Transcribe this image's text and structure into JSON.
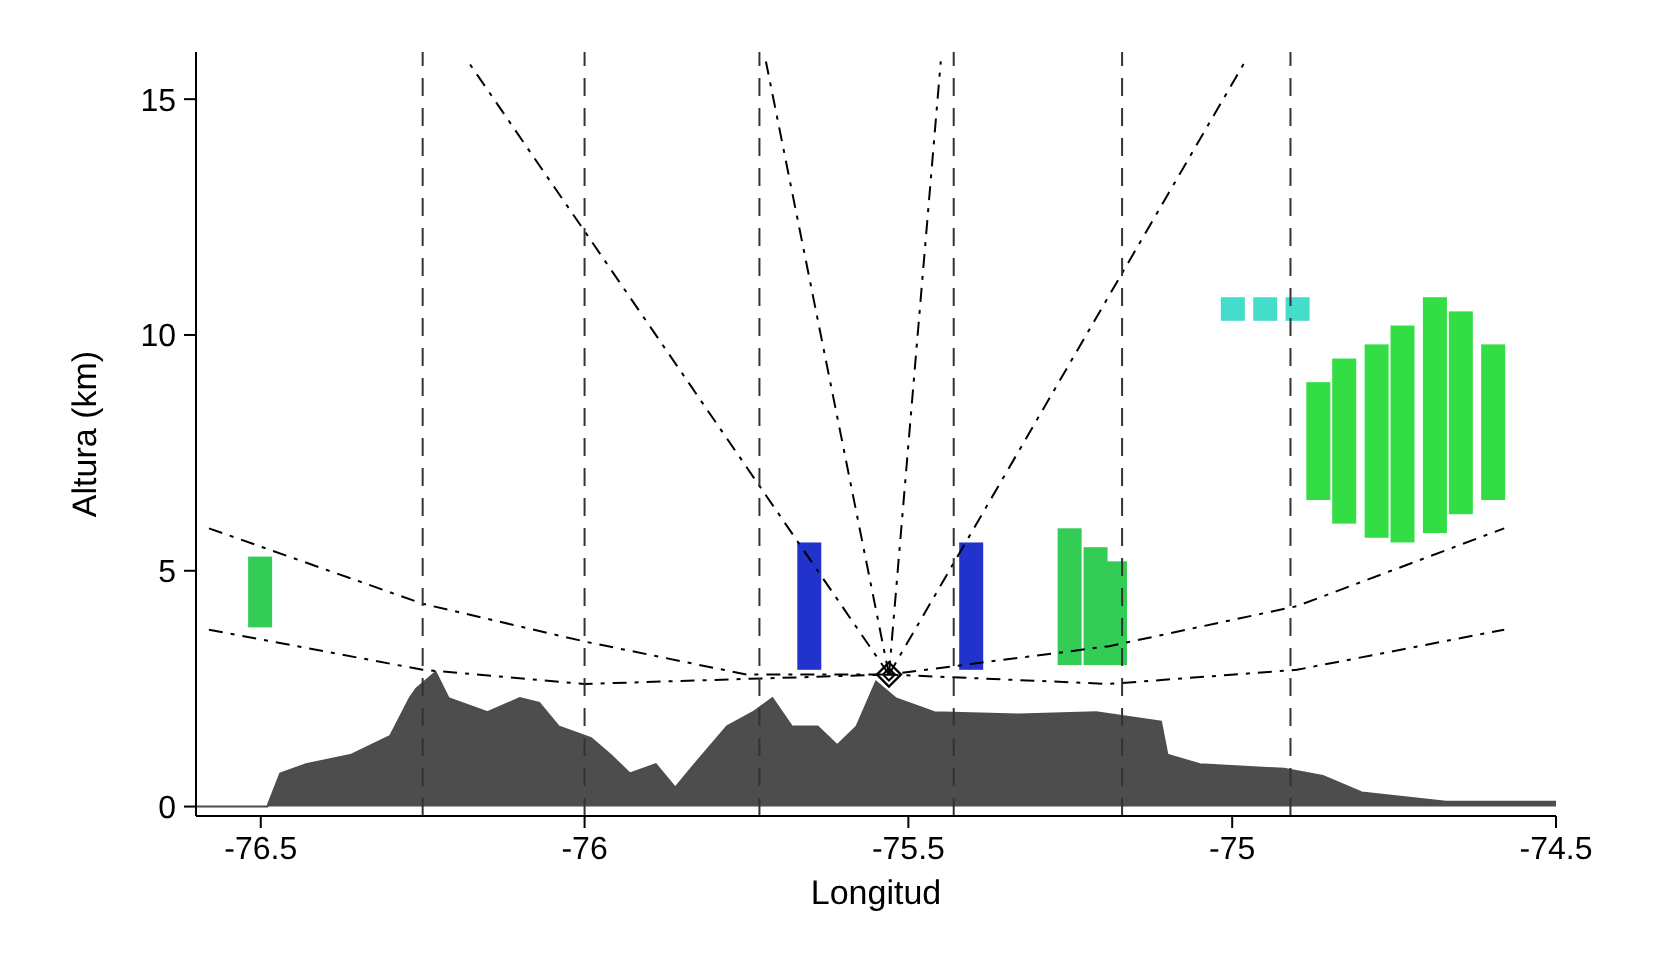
{
  "chart_data": {
    "type": "line",
    "xlabel": "Longitud",
    "ylabel": "Altura (km)",
    "xlim": [
      -76.6,
      -74.5
    ],
    "xticks": [
      -76.5,
      -76.0,
      -75.5,
      -75.0,
      -74.5
    ],
    "ylim": [
      -0.2,
      16
    ],
    "yticks": [
      0,
      5,
      10,
      15
    ],
    "ref_lines": [
      {
        "axis": "x",
        "value": -76.25,
        "line_style": "dashed",
        "color": "#333333"
      },
      {
        "axis": "x",
        "value": -76.0,
        "line_style": "dashed",
        "color": "#333333"
      },
      {
        "axis": "x",
        "value": -75.73,
        "line_style": "dashed",
        "color": "#333333"
      },
      {
        "axis": "x",
        "value": -75.43,
        "line_style": "dashed",
        "color": "#333333"
      },
      {
        "axis": "x",
        "value": -75.17,
        "line_style": "dashed",
        "color": "#333333"
      },
      {
        "axis": "x",
        "value": -74.91,
        "line_style": "dashed",
        "color": "#333333"
      }
    ],
    "series": [
      {
        "type": "area",
        "color": "#4d4d4d",
        "x": [
          -76.6,
          -76.49,
          -76.47,
          -76.43,
          -76.36,
          -76.3,
          -76.27,
          -76.26,
          -76.23,
          -76.21,
          -76.15,
          -76.1,
          -76.07,
          -76.04,
          -75.99,
          -75.96,
          -75.93,
          -75.89,
          -75.86,
          -75.83,
          -75.78,
          -75.74,
          -75.71,
          -75.68,
          -75.64,
          -75.61,
          -75.58,
          -75.55,
          -75.52,
          -75.46,
          -75.33,
          -75.21,
          -75.11,
          -75.1,
          -75.05,
          -74.92,
          -74.86,
          -74.8,
          -74.67,
          -74.5
        ],
        "values": [
          0,
          0,
          0.7,
          0.9,
          1.1,
          1.5,
          2.3,
          2.5,
          2.85,
          2.3,
          2.0,
          2.3,
          2.2,
          1.7,
          1.45,
          1.1,
          0.7,
          0.9,
          0.4,
          0.9,
          1.7,
          2.0,
          2.3,
          1.7,
          1.7,
          1.3,
          1.7,
          2.65,
          2.3,
          2.0,
          1.95,
          2.0,
          1.8,
          1.1,
          0.9,
          0.8,
          0.65,
          0.3,
          0.1,
          0.1
        ]
      },
      {
        "type": "bar",
        "color": "#2233cc",
        "x": [
          -75.65,
          -75.4
        ],
        "base": [
          2.9,
          2.9
        ],
        "values": [
          2.7,
          2.7
        ]
      },
      {
        "type": "bar",
        "color": "#33cc55",
        "x": [
          -76.5,
          -75.25,
          -75.21,
          -75.18
        ],
        "base": [
          3.8,
          3.0,
          3.0,
          3.0
        ],
        "values": [
          1.5,
          2.9,
          2.5,
          2.2
        ]
      },
      {
        "type": "bar",
        "color": "#44ddcc",
        "x": [
          -75.0,
          -74.95,
          -74.9
        ],
        "base": [
          10.3,
          10.3,
          10.3
        ],
        "values": [
          0.5,
          0.5,
          0.5
        ]
      },
      {
        "type": "bar",
        "color": "#33dd44",
        "x": [
          -74.87,
          -74.83,
          -74.78,
          -74.74,
          -74.69,
          -74.65,
          -74.6
        ],
        "base": [
          6.5,
          6.0,
          5.7,
          5.6,
          5.8,
          6.2,
          6.5
        ],
        "values": [
          2.5,
          3.5,
          4.1,
          4.6,
          5.0,
          4.3,
          3.3
        ]
      },
      {
        "color": "#000000",
        "line_style": "dashed",
        "x": [
          -75.53,
          -76.18
        ],
        "values": [
          2.8,
          15.8
        ]
      },
      {
        "color": "#000000",
        "line_style": "dashed",
        "x": [
          -75.53,
          -75.72
        ],
        "values": [
          2.8,
          15.8
        ]
      },
      {
        "color": "#000000",
        "line_style": "dashed",
        "x": [
          -75.53,
          -75.45
        ],
        "values": [
          2.8,
          15.8
        ]
      },
      {
        "color": "#000000",
        "line_style": "dashed",
        "x": [
          -75.53,
          -74.98
        ],
        "values": [
          2.8,
          15.8
        ]
      },
      {
        "color": "#000000",
        "line_style": "dashed",
        "x": [
          -76.58,
          -76.25,
          -76.0,
          -75.75,
          -75.53,
          -75.19,
          -74.9,
          -74.58
        ],
        "values": [
          5.9,
          4.3,
          3.5,
          2.8,
          2.8,
          3.4,
          4.25,
          5.9
        ]
      },
      {
        "color": "#000000",
        "line_style": "dashed",
        "x": [
          -76.58,
          -76.25,
          -76.0,
          -75.53,
          -75.19,
          -74.9,
          -74.58
        ],
        "values": [
          3.75,
          2.9,
          2.6,
          2.8,
          2.6,
          2.9,
          3.75
        ]
      },
      {
        "type": "scatter",
        "color": "#000000",
        "marker": "diamond",
        "x": [
          -75.53
        ],
        "values": [
          2.8
        ]
      }
    ]
  }
}
